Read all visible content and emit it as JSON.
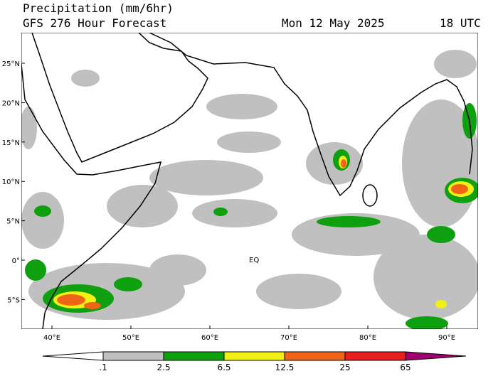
{
  "header": {
    "title": "Precipitation (mm/6hr)",
    "subtitle": "GFS 276 Hour Forecast",
    "date": "Mon 12 May 2025",
    "time": "18 UTC"
  },
  "map": {
    "lat_labels": [
      "25°N",
      "20°N",
      "15°N",
      "10°N",
      "5°N",
      "0°",
      "5°S"
    ],
    "lon_labels": [
      "40°E",
      "50°E",
      "60°E",
      "70°E",
      "80°E",
      "90°E"
    ],
    "equator_label": "EQ"
  },
  "legend": {
    "labels": [
      ".1",
      "2.5",
      "6.5",
      "12.5",
      "25",
      "65"
    ],
    "colors": [
      "#ffffff",
      "#c0c0c0",
      "#0fa00f",
      "#f0f014",
      "#f06418",
      "#e61e1e",
      "#a0006e"
    ]
  }
}
